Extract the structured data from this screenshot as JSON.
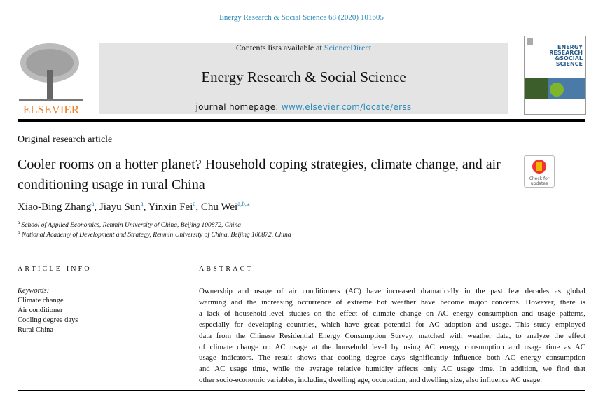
{
  "citation": "Energy Research & Social Science 68 (2020) 101605",
  "header": {
    "contents_prefix": "Contents lists available at ",
    "contents_link": "ScienceDirect",
    "journal_title": "Energy Research & Social Science",
    "homepage_prefix": "journal homepage: ",
    "homepage_link": "www.elsevier.com/locate/erss",
    "publisher_logo": "ELSEVIER",
    "cover_text": [
      "ENERGY",
      "RESEARCH",
      "&SOCIAL",
      "SCIENCE"
    ]
  },
  "article": {
    "type": "Original research article",
    "title": "Cooler rooms on a hotter planet? Household coping strategies, climate change, and air conditioning usage in rural China",
    "check_updates": "Check for updates",
    "authors": [
      {
        "name": "Xiao-Bing Zhang",
        "sup": "a"
      },
      {
        "name": "Jiayu Sun",
        "sup": "a"
      },
      {
        "name": "Yinxin Fei",
        "sup": "a"
      },
      {
        "name": "Chu Wei",
        "sup": "a,b,⁎"
      }
    ],
    "affiliations": [
      {
        "sup": "a",
        "text": "School of Applied Economics, Renmin University of China, Beijing 100872, China"
      },
      {
        "sup": "b",
        "text": "National Academy of Development and Strategy, Renmin University of China, Beijing 100872, China"
      }
    ],
    "article_info_heading": "ARTICLE INFO",
    "keywords_label": "Keywords:",
    "keywords": [
      "Climate change",
      "Air conditioner",
      "Cooling degree days",
      "Rural China"
    ],
    "abstract_heading": "ABSTRACT",
    "abstract_lines": [
      "Ownership and usage of air conditioners (AC) have increased dramatically in the past few decades as global",
      "warming and the increasing occurrence of extreme hot weather have become major concerns. However, there is",
      "a lack of household-level studies on the effect of climate change on AC energy consumption and usage patterns,",
      "especially for developing countries, which have great potential for AC adoption and usage. This study employed",
      "data from the Chinese Residential Energy Consumption Survey, matched with weather data, to analyze the effect",
      "of climate change on AC usage at the household level by using AC energy consumption and usage time as AC",
      "usage indicators. The result shows that cooling degree days significantly influence both AC energy consumption",
      "and AC usage time, while the average relative humidity affects only AC usage time. In addition, we find that",
      "other socio-economic variables, including dwelling age, occupation, and dwelling size, also influence AC usage."
    ]
  },
  "colors": {
    "link": "#2a8ab8",
    "elsevier_orange": "#f47b20",
    "header_grey": "#e4e4e4"
  }
}
